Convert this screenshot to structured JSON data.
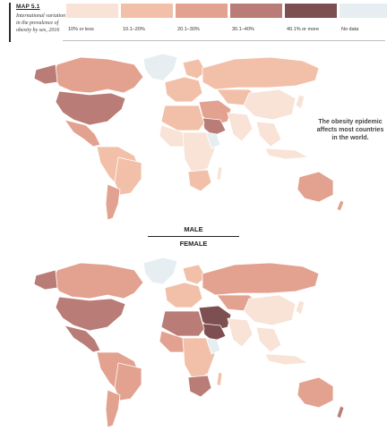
{
  "header": {
    "map_label": "MAP 5.1",
    "caption": "International variation in the prevalence of obesity by sex, 2016"
  },
  "legend": [
    {
      "label": "10% or less",
      "color": "#f8e3d6"
    },
    {
      "label": "10.1–20%",
      "color": "#f2c0a9"
    },
    {
      "label": "20.1–30%",
      "color": "#e3a18f"
    },
    {
      "label": "30.1–40%",
      "color": "#b97c76"
    },
    {
      "label": "40.1% or more",
      "color": "#7d4f50"
    },
    {
      "label": "No data",
      "color": "#e6eef2"
    }
  ],
  "annotation": "The obesity epidemic affects most countries in the world.",
  "maps": [
    {
      "label": "MALE"
    },
    {
      "label": "FEMALE"
    }
  ]
}
